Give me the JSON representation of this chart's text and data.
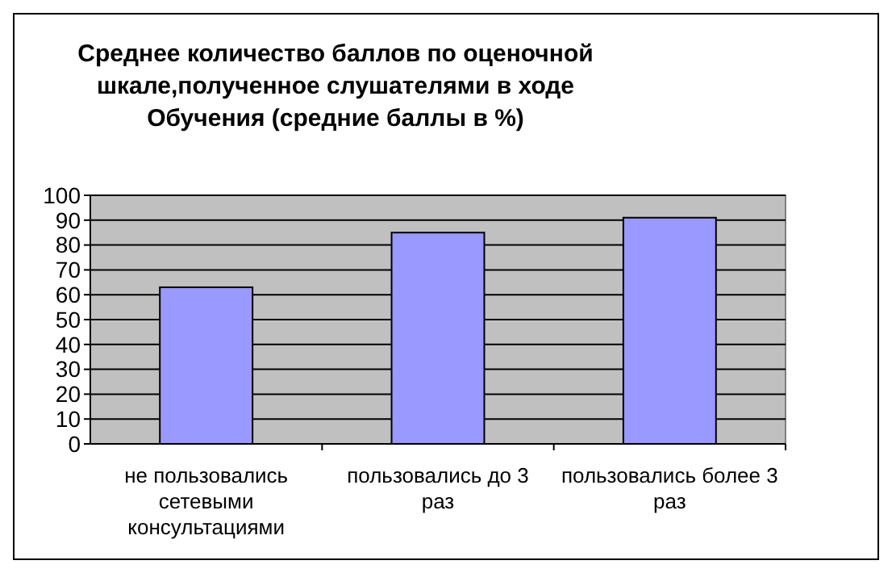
{
  "chart_data": {
    "type": "bar",
    "title": "Среднее количество баллов по оценочной шкале,полученное слушателями в ходе Обучения (средние баллы в %)",
    "categories": [
      "не пользовались сетевыми консультациями",
      "пользовались до 3 раз",
      "пользовались более 3 раз"
    ],
    "values": [
      63,
      85,
      91
    ],
    "color": "#9999ff",
    "ylim": [
      0,
      100
    ],
    "yticks": [
      0,
      10,
      20,
      30,
      40,
      50,
      60,
      70,
      80,
      90,
      100
    ],
    "grid": "y"
  }
}
